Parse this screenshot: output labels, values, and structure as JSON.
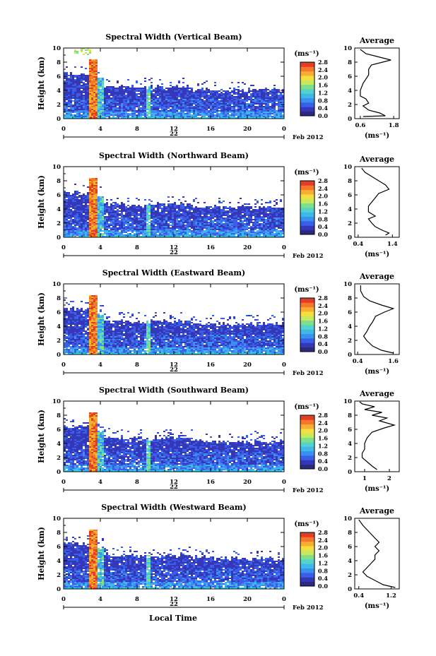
{
  "colors": {
    "scale": [
      "#2b2b7a",
      "#3438b8",
      "#3a5ee8",
      "#3c8ff0",
      "#3fb6ee",
      "#52d2d2",
      "#7ee08a",
      "#c8e860",
      "#f2e040",
      "#f5b030",
      "#f07a26",
      "#e63c22"
    ],
    "line": "#000000"
  },
  "panels": [
    {
      "title": "Spectral Width (Vertical Beam)",
      "ylabel": "Height (km)",
      "yticks": [
        "0",
        "2",
        "4",
        "6",
        "8",
        "10"
      ],
      "xticks": [
        "0",
        "4",
        "8",
        "12",
        "16",
        "20",
        "0"
      ],
      "day": "22",
      "date_text": "Feb 2012",
      "unit": "(ms⁻¹)",
      "colorbar_labels": [
        "0.0",
        "0.4",
        "0.8",
        "1.2",
        "1.6",
        "2.0",
        "2.4",
        "2.8"
      ],
      "avg_title": "Average",
      "avg_yticks": [
        "0",
        "2",
        "4",
        "6",
        "8",
        "10"
      ],
      "avg_xticks": [
        "0.6",
        "1.8"
      ],
      "avg_xlim": [
        0.4,
        2.0
      ],
      "avg_unit": "(ms⁻¹)",
      "layer_top_km": 4.6
    },
    {
      "title": "Spectral Width (Northward Beam)",
      "ylabel": "Height (km)",
      "yticks": [
        "0",
        "2",
        "4",
        "6",
        "8",
        "10"
      ],
      "xticks": [
        "0",
        "4",
        "8",
        "12",
        "16",
        "20",
        "0"
      ],
      "day": "22",
      "date_text": "Feb 2012",
      "unit": "(ms⁻¹)",
      "colorbar_labels": [
        "0.0",
        "0.4",
        "0.8",
        "1.2",
        "1.6",
        "2.0",
        "2.4",
        "2.8"
      ],
      "avg_title": "Average",
      "avg_yticks": [
        "0",
        "2",
        "4",
        "6",
        "8",
        "10"
      ],
      "avg_xticks": [
        "0.4",
        "1.4"
      ],
      "avg_xlim": [
        0.3,
        1.6
      ],
      "avg_unit": "(ms⁻¹)",
      "layer_top_km": 4.8
    },
    {
      "title": "Spectral Width (Eastward Beam)",
      "ylabel": "Height (km)",
      "yticks": [
        "0",
        "2",
        "4",
        "6",
        "8",
        "10"
      ],
      "xticks": [
        "0",
        "4",
        "8",
        "12",
        "16",
        "20",
        "0"
      ],
      "day": "22",
      "date_text": "Feb 2012",
      "unit": "(ms⁻¹)",
      "colorbar_labels": [
        "0.0",
        "0.4",
        "0.8",
        "1.2",
        "1.6",
        "2.0",
        "2.4",
        "2.8"
      ],
      "avg_title": "Average",
      "avg_yticks": [
        "0",
        "2",
        "4",
        "6",
        "8",
        "10"
      ],
      "avg_xticks": [
        "0.4",
        "1.6"
      ],
      "avg_xlim": [
        0.3,
        1.8
      ],
      "avg_unit": "(ms⁻¹)",
      "layer_top_km": 4.8
    },
    {
      "title": "Spectral Width (Southward Beam)",
      "ylabel": "Height (km)",
      "yticks": [
        "0",
        "2",
        "4",
        "6",
        "8",
        "10"
      ],
      "xticks": [
        "0",
        "4",
        "8",
        "12",
        "16",
        "20",
        "0"
      ],
      "day": "22",
      "date_text": "Feb 2012",
      "unit": "(ms⁻¹)",
      "colorbar_labels": [
        "0.0",
        "0.4",
        "0.8",
        "1.2",
        "1.6",
        "2.0",
        "2.4",
        "2.8"
      ],
      "avg_title": "Average",
      "avg_yticks": [
        "0",
        "2",
        "4",
        "6",
        "8",
        "10"
      ],
      "avg_xticks": [
        "1",
        "2"
      ],
      "avg_xlim": [
        0.6,
        2.4
      ],
      "avg_unit": "(ms⁻¹)",
      "layer_top_km": 4.8
    },
    {
      "title": "Spectral Width (Westward Beam)",
      "ylabel": "Height (km)",
      "yticks": [
        "0",
        "2",
        "4",
        "6",
        "8",
        "10"
      ],
      "xticks": [
        "0",
        "4",
        "8",
        "12",
        "16",
        "20",
        "0"
      ],
      "day": "22",
      "date_text": "Feb 2012",
      "unit": "(ms⁻¹)",
      "colorbar_labels": [
        "0.0",
        "0.4",
        "0.8",
        "1.2",
        "1.6",
        "2.0",
        "2.4",
        "2.8"
      ],
      "avg_title": "Average",
      "avg_yticks": [
        "0",
        "2",
        "4",
        "6",
        "8",
        "10"
      ],
      "avg_xticks": [
        "0.4",
        "1.2"
      ],
      "avg_xlim": [
        0.3,
        1.4
      ],
      "avg_unit": "(ms⁻¹)",
      "layer_top_km": 4.8
    }
  ],
  "xlabel": "Local Time",
  "chart_data": [
    {
      "type": "heatmap",
      "title": "Spectral Width (Vertical Beam)",
      "ylabel": "Height (km)",
      "xlim": [
        0,
        24
      ],
      "ylim": [
        0,
        10
      ],
      "zlim": [
        0.0,
        2.8
      ],
      "average_profile": {
        "ylim": [
          0,
          10
        ],
        "xlim": [
          0.4,
          2.0
        ],
        "points": [
          [
            0.7,
            0.3
          ],
          [
            1.5,
            0.4
          ],
          [
            1.3,
            0.8
          ],
          [
            0.9,
            1.2
          ],
          [
            0.7,
            1.8
          ],
          [
            0.9,
            2.2
          ],
          [
            0.8,
            2.8
          ],
          [
            0.6,
            3.2
          ],
          [
            0.6,
            4.0
          ],
          [
            0.7,
            5.0
          ],
          [
            0.8,
            5.6
          ],
          [
            0.9,
            6.2
          ],
          [
            0.9,
            7.0
          ],
          [
            1.0,
            7.6
          ],
          [
            1.4,
            8.0
          ],
          [
            1.7,
            8.3
          ],
          [
            1.2,
            8.8
          ],
          [
            0.8,
            9.2
          ],
          [
            0.6,
            9.8
          ]
        ]
      }
    },
    {
      "type": "heatmap",
      "title": "Spectral Width (Northward Beam)",
      "ylabel": "Height (km)",
      "xlim": [
        0,
        24
      ],
      "ylim": [
        0,
        10
      ],
      "zlim": [
        0.0,
        2.8
      ],
      "average_profile": {
        "ylim": [
          0,
          10
        ],
        "xlim": [
          0.3,
          1.6
        ],
        "points": [
          [
            1.2,
            0.3
          ],
          [
            1.3,
            0.6
          ],
          [
            1.1,
            1.0
          ],
          [
            0.9,
            1.5
          ],
          [
            0.8,
            2.0
          ],
          [
            0.7,
            2.6
          ],
          [
            0.9,
            3.0
          ],
          [
            0.7,
            3.6
          ],
          [
            0.7,
            4.4
          ],
          [
            0.8,
            5.0
          ],
          [
            0.9,
            5.6
          ],
          [
            1.0,
            6.2
          ],
          [
            1.3,
            6.8
          ],
          [
            1.2,
            7.4
          ],
          [
            1.0,
            8.0
          ],
          [
            0.8,
            8.6
          ],
          [
            0.6,
            9.2
          ],
          [
            0.5,
            9.8
          ]
        ]
      }
    },
    {
      "type": "heatmap",
      "title": "Spectral Width (Eastward Beam)",
      "ylabel": "Height (km)",
      "xlim": [
        0,
        24
      ],
      "ylim": [
        0,
        10
      ],
      "zlim": [
        0.0,
        2.8
      ],
      "average_profile": {
        "ylim": [
          0,
          10
        ],
        "xlim": [
          0.3,
          1.8
        ],
        "points": [
          [
            1.6,
            0.2
          ],
          [
            1.2,
            0.6
          ],
          [
            0.9,
            1.2
          ],
          [
            0.7,
            2.0
          ],
          [
            0.6,
            2.6
          ],
          [
            0.7,
            3.2
          ],
          [
            0.8,
            4.0
          ],
          [
            0.9,
            4.6
          ],
          [
            1.0,
            5.4
          ],
          [
            1.3,
            6.0
          ],
          [
            1.6,
            6.5
          ],
          [
            1.2,
            7.0
          ],
          [
            0.8,
            7.6
          ],
          [
            0.6,
            8.2
          ],
          [
            0.5,
            9.0
          ],
          [
            0.5,
            9.8
          ]
        ]
      }
    },
    {
      "type": "heatmap",
      "title": "Spectral Width (Southward Beam)",
      "ylabel": "Height (km)",
      "xlim": [
        0,
        24
      ],
      "ylim": [
        0,
        10
      ],
      "zlim": [
        0.0,
        2.8
      ],
      "average_profile": {
        "ylim": [
          0,
          10
        ],
        "xlim": [
          0.6,
          2.4
        ],
        "points": [
          [
            1.5,
            0.3
          ],
          [
            1.3,
            0.8
          ],
          [
            1.1,
            1.4
          ],
          [
            0.9,
            2.0
          ],
          [
            0.9,
            2.6
          ],
          [
            1.0,
            3.2
          ],
          [
            1.0,
            4.0
          ],
          [
            1.1,
            4.8
          ],
          [
            1.3,
            5.6
          ],
          [
            1.8,
            6.2
          ],
          [
            2.2,
            6.6
          ],
          [
            1.6,
            7.2
          ],
          [
            1.9,
            7.6
          ],
          [
            1.3,
            8.0
          ],
          [
            1.7,
            8.4
          ],
          [
            1.0,
            8.8
          ],
          [
            1.4,
            9.2
          ],
          [
            0.9,
            9.6
          ],
          [
            0.8,
            9.9
          ]
        ]
      }
    },
    {
      "type": "heatmap",
      "title": "Spectral Width (Westward Beam)",
      "ylabel": "Height (km)",
      "xlim": [
        0,
        24
      ],
      "ylim": [
        0,
        10
      ],
      "zlim": [
        0.0,
        2.8
      ],
      "average_profile": {
        "ylim": [
          0,
          10
        ],
        "xlim": [
          0.3,
          1.4
        ],
        "points": [
          [
            1.3,
            0.2
          ],
          [
            1.0,
            0.6
          ],
          [
            0.8,
            1.2
          ],
          [
            0.6,
            1.8
          ],
          [
            0.5,
            2.4
          ],
          [
            0.6,
            3.0
          ],
          [
            0.7,
            3.6
          ],
          [
            0.8,
            4.2
          ],
          [
            0.8,
            4.8
          ],
          [
            0.9,
            5.4
          ],
          [
            0.8,
            6.0
          ],
          [
            0.9,
            6.6
          ],
          [
            0.8,
            7.2
          ],
          [
            0.7,
            7.8
          ],
          [
            0.6,
            8.4
          ],
          [
            0.5,
            9.0
          ],
          [
            0.4,
            9.8
          ]
        ]
      }
    }
  ]
}
